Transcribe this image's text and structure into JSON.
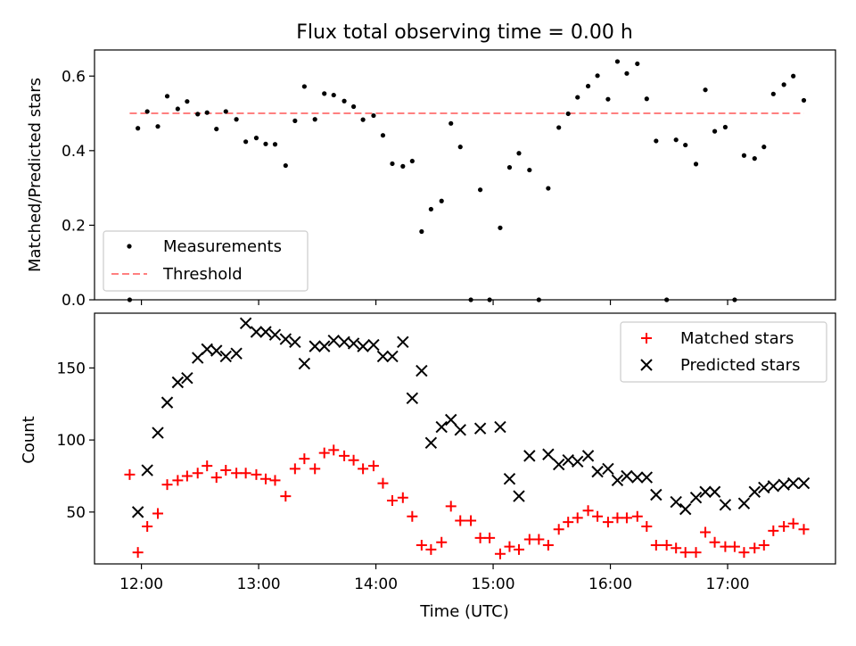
{
  "chart_data": [
    {
      "type": "scatter",
      "title": "Flux total observing time = 0.00 h",
      "xlabel": "",
      "ylabel": "Matched/Predicted stars",
      "xlim_hours": [
        11.6,
        17.92
      ],
      "ylim": [
        0,
        0.67
      ],
      "yticks": [
        0.0,
        0.2,
        0.4,
        0.6
      ],
      "ytick_labels": [
        "0.0",
        "0.2",
        "0.4",
        "0.6"
      ],
      "legend": {
        "position": "lower-left",
        "entries": [
          "Measurements",
          "Threshold"
        ]
      },
      "threshold": {
        "name": "Threshold",
        "value": 0.5,
        "x_range": [
          11.9,
          17.65
        ],
        "color": "#ff8080"
      },
      "series": [
        {
          "name": "Measurements",
          "color": "#000000",
          "marker": "dot",
          "x": [
            11.9,
            11.97,
            12.05,
            12.14,
            12.22,
            12.31,
            12.39,
            12.48,
            12.56,
            12.64,
            12.72,
            12.81,
            12.89,
            12.98,
            13.06,
            13.14,
            13.23,
            13.31,
            13.39,
            13.48,
            13.56,
            13.64,
            13.73,
            13.81,
            13.89,
            13.98,
            14.06,
            14.14,
            14.23,
            14.31,
            14.39,
            14.47,
            14.56,
            14.64,
            14.72,
            14.81,
            14.89,
            14.97,
            15.06,
            15.14,
            15.22,
            15.31,
            15.39,
            15.47,
            15.56,
            15.64,
            15.72,
            15.81,
            15.89,
            15.98,
            16.06,
            16.14,
            16.23,
            16.31,
            16.39,
            16.48,
            16.56,
            16.64,
            16.73,
            16.81,
            16.89,
            16.98,
            17.06,
            17.14,
            17.23,
            17.31,
            17.39,
            17.48,
            17.56,
            17.65
          ],
          "y": [
            0.0,
            0.46,
            0.505,
            0.465,
            0.546,
            0.512,
            0.532,
            0.498,
            0.502,
            0.458,
            0.505,
            0.484,
            0.424,
            0.434,
            0.418,
            0.417,
            0.36,
            0.48,
            0.572,
            0.484,
            0.553,
            0.549,
            0.533,
            0.518,
            0.483,
            0.494,
            0.441,
            0.365,
            0.358,
            0.372,
            0.183,
            0.243,
            0.265,
            0.473,
            0.41,
            0.0,
            0.295,
            0.0,
            0.193,
            0.355,
            0.393,
            0.348,
            0.0,
            0.299,
            0.462,
            0.499,
            0.543,
            0.573,
            0.601,
            0.538,
            0.639,
            0.607,
            0.633,
            0.539,
            0.426,
            0.0,
            0.429,
            0.415,
            0.364,
            0.563,
            0.452,
            0.463,
            0.0,
            0.387,
            0.379,
            0.41,
            0.552,
            0.577,
            0.6,
            0.535
          ]
        }
      ]
    },
    {
      "type": "scatter",
      "title": "",
      "xlabel": "Time (UTC)",
      "ylabel": "Count",
      "xlim_hours": [
        11.6,
        17.92
      ],
      "ylim": [
        14,
        188
      ],
      "yticks": [
        50,
        100,
        150
      ],
      "ytick_labels": [
        "50",
        "100",
        "150"
      ],
      "xticks_hours": [
        12,
        13,
        14,
        15,
        16,
        17
      ],
      "xtick_labels": [
        "12:00",
        "13:00",
        "14:00",
        "15:00",
        "16:00",
        "17:00"
      ],
      "legend": {
        "position": "top-right",
        "entries": [
          "Matched stars",
          "Predicted stars"
        ]
      },
      "series": [
        {
          "name": "Matched stars",
          "color": "#ff0000",
          "marker": "plus",
          "x": [
            11.9,
            11.97,
            12.05,
            12.14,
            12.22,
            12.31,
            12.39,
            12.48,
            12.56,
            12.64,
            12.72,
            12.81,
            12.89,
            12.98,
            13.06,
            13.14,
            13.23,
            13.31,
            13.39,
            13.48,
            13.56,
            13.64,
            13.73,
            13.81,
            13.89,
            13.98,
            14.06,
            14.14,
            14.23,
            14.31,
            14.39,
            14.47,
            14.56,
            14.64,
            14.72,
            14.81,
            14.89,
            14.97,
            15.06,
            15.14,
            15.22,
            15.31,
            15.39,
            15.47,
            15.56,
            15.64,
            15.72,
            15.81,
            15.89,
            15.98,
            16.06,
            16.14,
            16.23,
            16.31,
            16.39,
            16.48,
            16.56,
            16.64,
            16.73,
            16.81,
            16.89,
            16.98,
            17.06,
            17.14,
            17.23,
            17.31,
            17.39,
            17.48,
            17.56,
            17.65
          ],
          "y": [
            76,
            22,
            40,
            49,
            69,
            72,
            75,
            77,
            82,
            74,
            79,
            77,
            77,
            76,
            73,
            72,
            61,
            80,
            87,
            80,
            91,
            93,
            89,
            86,
            80,
            82,
            70,
            58,
            60,
            47,
            27,
            24,
            29,
            54,
            44,
            44,
            32,
            32,
            21,
            26,
            24,
            31,
            31,
            27,
            38,
            43,
            46,
            51,
            47,
            43,
            46,
            46,
            47,
            40,
            27,
            27,
            25,
            22,
            22,
            36,
            29,
            26,
            26,
            22,
            25,
            27,
            37,
            40,
            42,
            38
          ]
        },
        {
          "name": "Predicted stars",
          "color": "#000000",
          "marker": "x",
          "x": [
            11.97,
            12.05,
            12.14,
            12.22,
            12.31,
            12.39,
            12.48,
            12.56,
            12.64,
            12.72,
            12.81,
            12.89,
            12.98,
            13.06,
            13.14,
            13.23,
            13.31,
            13.39,
            13.48,
            13.56,
            13.64,
            13.73,
            13.81,
            13.89,
            13.98,
            14.06,
            14.14,
            14.23,
            14.31,
            14.39,
            14.47,
            14.56,
            14.64,
            14.72,
            14.89,
            15.06,
            15.14,
            15.22,
            15.31,
            15.47,
            15.56,
            15.64,
            15.72,
            15.81,
            15.89,
            15.98,
            16.06,
            16.14,
            16.23,
            16.31,
            16.39,
            16.56,
            16.64,
            16.73,
            16.81,
            16.89,
            16.98,
            17.14,
            17.23,
            17.31,
            17.39,
            17.48,
            17.56,
            17.65
          ],
          "y": [
            50,
            79,
            105,
            126,
            140,
            143,
            157,
            163,
            162,
            158,
            160,
            181,
            175,
            175,
            173,
            170,
            168,
            153,
            165,
            165,
            169,
            168,
            167,
            165,
            166,
            158,
            158,
            168,
            129,
            148,
            98,
            109,
            114,
            107,
            108,
            109,
            73,
            61,
            89,
            90,
            83,
            86,
            85,
            89,
            78,
            80,
            72,
            75,
            74,
            74,
            62,
            57,
            52,
            60,
            64,
            64,
            55,
            56,
            64,
            67,
            68,
            69,
            70,
            70
          ]
        }
      ]
    }
  ]
}
